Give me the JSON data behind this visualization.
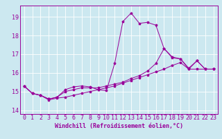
{
  "background_color": "#cce8f0",
  "grid_color": "#ffffff",
  "line_color": "#990099",
  "xlabel": "Windchill (Refroidissement éolien,°C)",
  "ylim": [
    13.8,
    19.6
  ],
  "xlim": [
    -0.5,
    23.5
  ],
  "yticks": [
    14,
    15,
    16,
    17,
    18,
    19
  ],
  "xticks": [
    0,
    1,
    2,
    3,
    4,
    5,
    6,
    7,
    8,
    9,
    10,
    11,
    12,
    13,
    14,
    15,
    16,
    17,
    18,
    19,
    20,
    21,
    22,
    23
  ],
  "y_main": [
    15.3,
    14.9,
    14.8,
    14.6,
    14.7,
    15.1,
    15.25,
    15.3,
    15.25,
    15.1,
    15.05,
    16.5,
    18.75,
    19.2,
    18.65,
    18.7,
    18.55,
    17.3,
    16.85,
    16.75,
    16.2,
    16.65,
    16.2,
    16.2
  ],
  "y_upper": [
    15.3,
    14.9,
    14.8,
    14.6,
    14.7,
    15.0,
    15.1,
    15.2,
    15.2,
    15.2,
    15.3,
    15.4,
    15.5,
    15.7,
    15.85,
    16.1,
    16.5,
    17.3,
    16.8,
    16.75,
    16.25,
    16.65,
    16.2,
    16.2
  ],
  "y_lower": [
    15.3,
    14.9,
    14.8,
    14.55,
    14.65,
    14.7,
    14.8,
    14.9,
    15.0,
    15.1,
    15.2,
    15.3,
    15.45,
    15.6,
    15.75,
    15.9,
    16.05,
    16.2,
    16.4,
    16.55,
    16.2,
    16.2,
    16.2,
    16.2
  ],
  "xlabel_fontsize": 6,
  "tick_fontsize": 6,
  "linewidth": 0.7,
  "markersize": 2.5
}
